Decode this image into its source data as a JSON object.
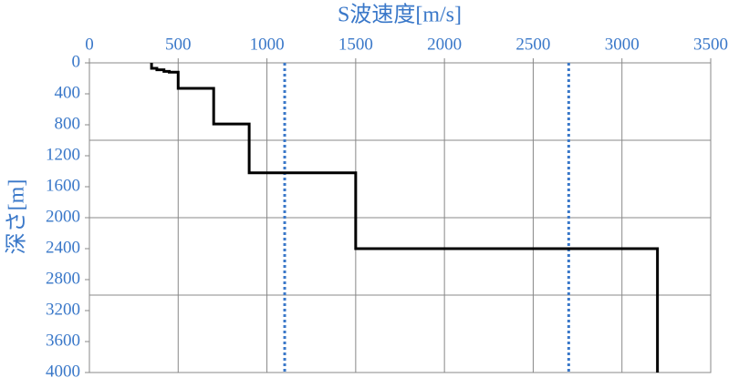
{
  "chart_data": {
    "type": "line",
    "xlabel": "S波速度[m/s]",
    "ylabel": "深さ[m]",
    "xlim": [
      0,
      3500
    ],
    "xticks": [
      0,
      500,
      1000,
      1500,
      2000,
      2500,
      3000,
      3500
    ],
    "ylim": [
      0,
      4000
    ],
    "yticks": [
      0,
      400,
      800,
      1200,
      1600,
      2000,
      2400,
      2800,
      3200,
      3600,
      4000
    ],
    "y_inverted": true,
    "x_axis_position": "top",
    "ygrid": [
      1000,
      2000,
      3000
    ],
    "xgrid": true,
    "series": [
      {
        "color": "#000000",
        "x": [
          350,
          350,
          380,
          380,
          420,
          420,
          450,
          450,
          500,
          500,
          700,
          700,
          900,
          900,
          1500,
          1500,
          3200,
          3200
        ],
        "values": [
          0,
          70,
          70,
          90,
          90,
          110,
          110,
          120,
          120,
          330,
          330,
          790,
          790,
          1420,
          1420,
          2400,
          2400,
          4000
        ]
      }
    ],
    "reference_lines": [
      {
        "value": 1100,
        "color": "#3a78c9"
      },
      {
        "value": 2700,
        "color": "#3a78c9"
      }
    ]
  }
}
